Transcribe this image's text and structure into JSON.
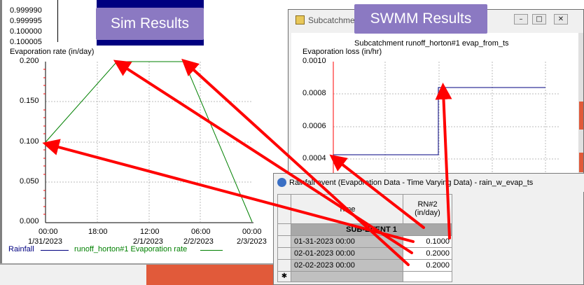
{
  "left_chart": {
    "top_ticks": [
      "0.999990",
      "0.999995",
      "0.100000",
      "0.100005"
    ],
    "y_axis_title": "Evaporation rate (in/day)",
    "y_ticks": [
      "0.200",
      "0.150",
      "0.100",
      "0.050",
      "0.000"
    ],
    "x_ticks": [
      {
        "time": "00:00",
        "date": "1/31/2023"
      },
      {
        "time": "18:00",
        "date": ""
      },
      {
        "time": "12:00",
        "date": "2/1/2023"
      },
      {
        "time": "06:00",
        "date": "2/2/2023"
      },
      {
        "time": "00:00",
        "date": "2/3/2023"
      }
    ],
    "legend": [
      {
        "label": "Rainfall",
        "color": "#000080"
      },
      {
        "label": "runoff_horton#1 Evaporation rate",
        "color": "#008000"
      }
    ],
    "callout": "Sim Results"
  },
  "right_chart": {
    "window_title": "Subcatchment",
    "plot_title": "Subcatchment runoff_horton#1 evap_from_ts",
    "y_axis_title": "Evaporation loss (in/hr)",
    "y_ticks": [
      "0.0010",
      "0.0008",
      "0.0006",
      "0.0004"
    ],
    "callout": "SWMM Results",
    "buttons": {
      "minimize": "–",
      "maximize": "□",
      "close": "✕"
    }
  },
  "table_window": {
    "title": "Rainfall event (Evaporation Data - Time Varying Data) - rain_w_evap_ts",
    "col_time": "Time",
    "col_rn": "RN#2",
    "col_rn_unit": "(in/day)",
    "group_label": "SUB-EVENT 1",
    "rows": [
      {
        "time": "01-31-2023 00:00",
        "value": "0.1000"
      },
      {
        "time": "02-01-2023 00:00",
        "value": "0.2000"
      },
      {
        "time": "02-02-2023 00:00",
        "value": "0.2000"
      }
    ],
    "new_row_marker": "✱"
  },
  "colors": {
    "sim_line": "#008000",
    "swmm_line": "#000080",
    "arrow": "#ff0000",
    "callout": "#8b79c2"
  }
}
